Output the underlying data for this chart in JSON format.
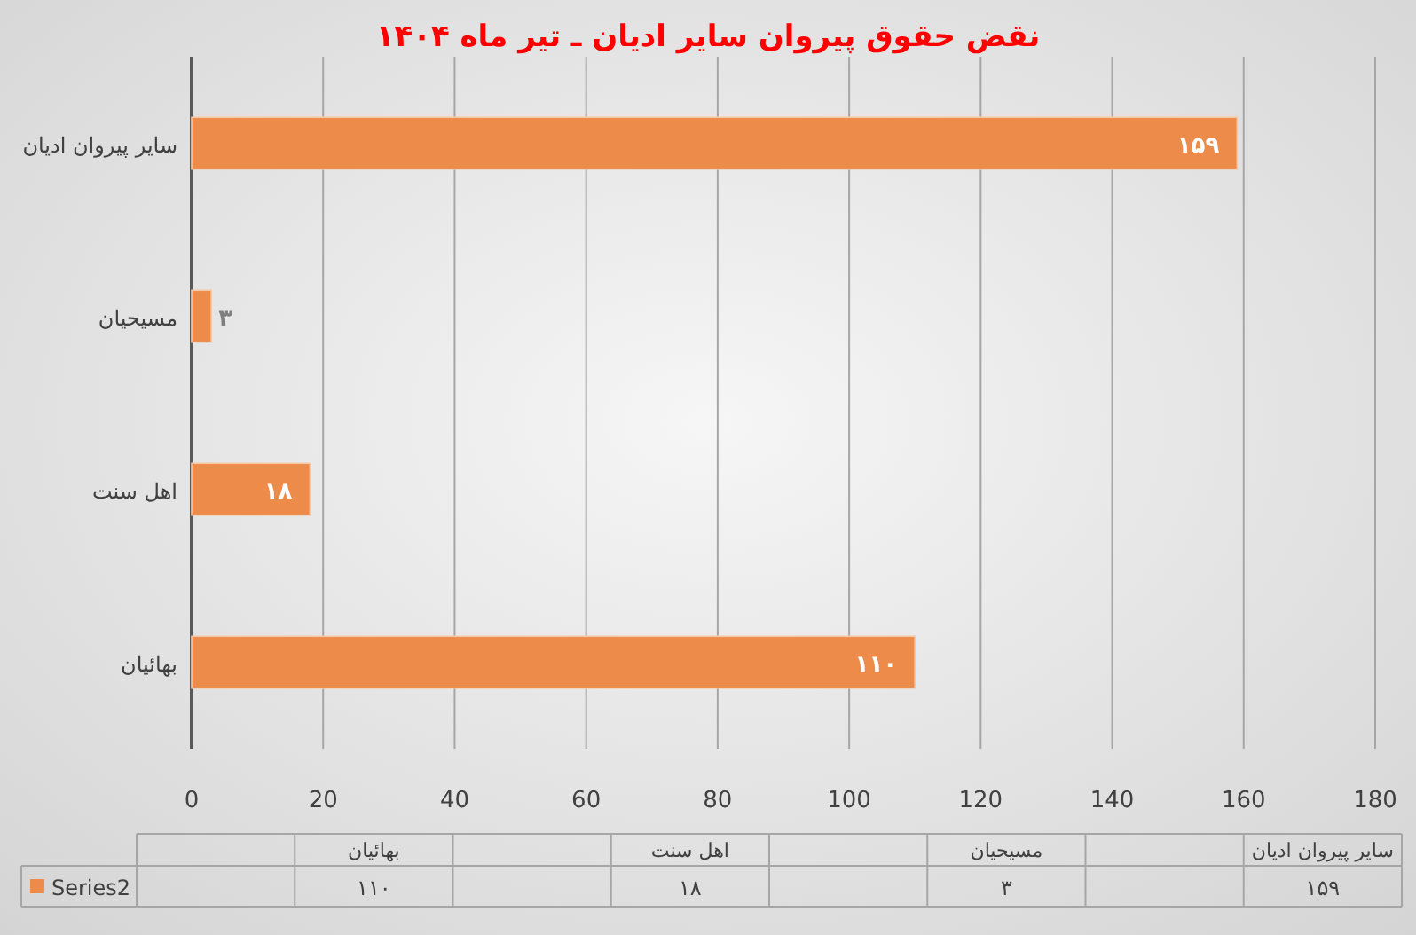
{
  "chart_data": {
    "type": "bar",
    "orientation": "horizontal",
    "title": "نقض حقوق پیروان سایر ادیان ـ تیر ماه ۱۴۰۴",
    "categories": [
      "سایر پیروان ادیان",
      "مسیحیان",
      "اهل سنت",
      "بهائیان"
    ],
    "series": [
      {
        "name": "Series2",
        "color": "#ed8b4a",
        "values": [
          159,
          3,
          18,
          110
        ],
        "value_labels": [
          "۱۵۹",
          "۳",
          "۱۸",
          "۱۱۰"
        ]
      }
    ],
    "xlim": [
      0,
      180
    ],
    "xticks": [
      0,
      20,
      40,
      60,
      80,
      100,
      120,
      140,
      160,
      180
    ],
    "grid": "x",
    "legend": "bottom"
  }
}
